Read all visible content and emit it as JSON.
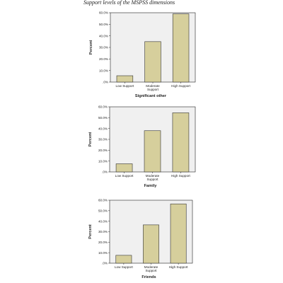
{
  "page_title": "Support levels of the MSPSS dimensions",
  "chart_data": [
    {
      "type": "bar",
      "categories": [
        "Low Support",
        "Moderate Support",
        "High Support"
      ],
      "values": [
        5.5,
        35.0,
        59.0
      ],
      "ylabel": "Percent",
      "xlabel": "Significant other",
      "ylim": [
        0,
        60
      ],
      "yticks": [
        ".0%",
        "10.0%",
        "20.0%",
        "30.0%",
        "40.0%",
        "50.0%",
        "60.0%"
      ],
      "colors": {
        "bar": "#d6cf9c",
        "plot_bg": "#f0f0f0"
      }
    },
    {
      "type": "bar",
      "categories": [
        "Low Support",
        "Moderate Support",
        "High Support"
      ],
      "values": [
        7.5,
        38.0,
        54.5
      ],
      "ylabel": "Percent",
      "xlabel": "Family",
      "ylim": [
        0,
        60
      ],
      "yticks": [
        ".0%",
        "10.0%",
        "20.0%",
        "30.0%",
        "40.0%",
        "50.0%",
        "60.0%"
      ],
      "colors": {
        "bar": "#d6cf9c",
        "plot_bg": "#f0f0f0"
      }
    },
    {
      "type": "bar",
      "categories": [
        "Low Support",
        "Moderate Support",
        "High Support"
      ],
      "values": [
        7.5,
        36.5,
        56.5
      ],
      "ylabel": "Percent",
      "xlabel": "Friends",
      "ylim": [
        0,
        60
      ],
      "yticks": [
        ".0%",
        "10.0%",
        "20.0%",
        "30.0%",
        "40.0%",
        "50.0%",
        "60.0%"
      ],
      "colors": {
        "bar": "#d6cf9c",
        "plot_bg": "#f0f0f0"
      }
    }
  ]
}
